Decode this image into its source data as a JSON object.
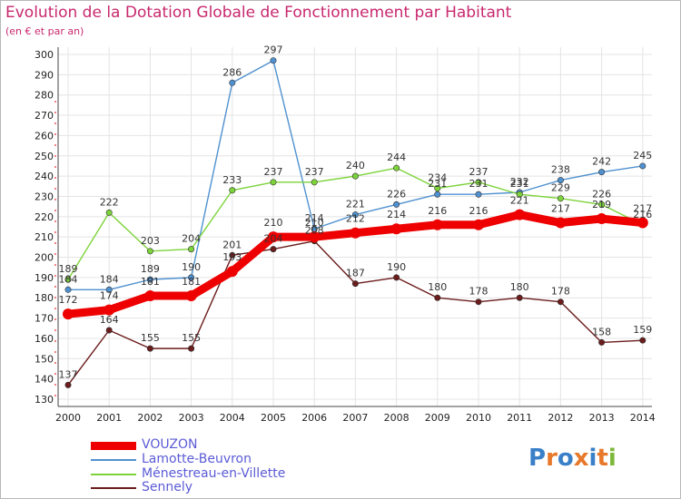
{
  "chart_data": {
    "type": "line",
    "title": "Evolution de la Dotation Globale de Fonctionnement par Habitant",
    "subtitle": "(en € et par an)",
    "xlabel": "",
    "ylabel": "",
    "categories": [
      "2000",
      "2001",
      "2002",
      "2003",
      "2004",
      "2005",
      "2006",
      "2007",
      "2008",
      "2009",
      "2010",
      "2011",
      "2012",
      "2013",
      "2014"
    ],
    "ylim": [
      130,
      300
    ],
    "yticks": [
      130,
      140,
      150,
      160,
      170,
      180,
      190,
      200,
      210,
      220,
      230,
      240,
      250,
      260,
      270,
      280,
      290,
      300
    ],
    "grid": true,
    "series": [
      {
        "name": "VOUZON",
        "color": "#ee0000",
        "values": [
          172,
          174,
          181,
          181,
          193,
          210,
          210,
          212,
          214,
          216,
          216,
          221,
          217,
          219,
          217
        ],
        "labels": [
          "172",
          "174",
          "181",
          "181",
          "193",
          "210",
          "210",
          "212",
          "214",
          "216",
          "216",
          "221",
          "217",
          "219",
          "217"
        ]
      },
      {
        "name": "Lamotte-Beuvron",
        "color": "#4f91d0",
        "values": [
          184,
          184,
          189,
          190,
          286,
          297,
          214,
          221,
          226,
          231,
          231,
          232,
          238,
          242,
          245
        ],
        "labels": [
          "184",
          "184",
          "189",
          "190",
          "286",
          "297",
          "214",
          "221",
          "226",
          "231",
          "231",
          "232",
          "238",
          "242",
          "245"
        ]
      },
      {
        "name": "Ménestreau-en-Villette",
        "color": "#7dd33a",
        "values": [
          189,
          222,
          203,
          204,
          233,
          237,
          237,
          240,
          244,
          234,
          237,
          231,
          229,
          226,
          216
        ],
        "labels": [
          "189",
          "222",
          "203",
          "204",
          "233",
          "237",
          "237",
          "240",
          "244",
          "234",
          "237",
          "231",
          "229",
          "226",
          "216"
        ]
      },
      {
        "name": "Sennely",
        "color": "#6b1c1c",
        "values": [
          137,
          164,
          155,
          155,
          201,
          204,
          208,
          187,
          190,
          180,
          178,
          180,
          178,
          158,
          159
        ],
        "labels": [
          "137",
          "164",
          "155",
          "155",
          "201",
          "204",
          "208",
          "187",
          "190",
          "180",
          "178",
          "180",
          "178",
          "158",
          "159"
        ]
      }
    ]
  },
  "logo": {
    "text": "Proxiti",
    "colors": [
      "#3a80c8",
      "#e8782a",
      "#3a80c8",
      "#e8782a",
      "#3a80c8",
      "#e8782a",
      "#7db83a"
    ]
  }
}
